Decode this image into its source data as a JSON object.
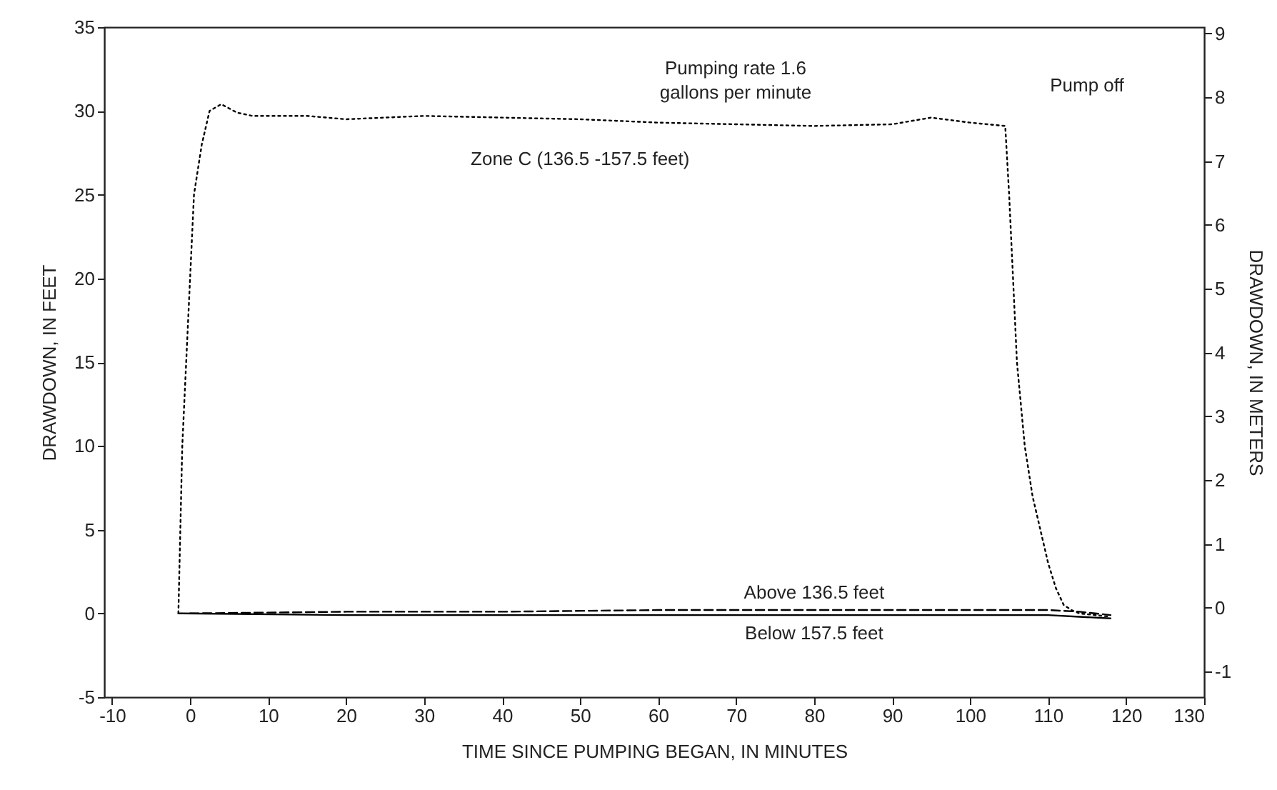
{
  "chart_data": {
    "type": "line",
    "xlabel": "TIME SINCE PUMPING BEGAN, IN MINUTES",
    "ylabel": "DRAWDOWN, IN FEET",
    "y2label": "DRAWDOWN, IN METERS",
    "xlim": [
      -11,
      130
    ],
    "xticks": [
      -10,
      0,
      10,
      20,
      30,
      40,
      50,
      60,
      70,
      80,
      90,
      100,
      110,
      120,
      130
    ],
    "ylim": [
      -5,
      35
    ],
    "yticks": [
      -5,
      0,
      5,
      10,
      15,
      20,
      25,
      30,
      35
    ],
    "y2lim": [
      -1.4,
      9.1
    ],
    "y2ticks": [
      -1,
      0,
      1,
      2,
      3,
      4,
      5,
      6,
      7,
      8,
      9
    ],
    "grid": false,
    "legend": false,
    "annotations": [
      "Pumping rate 1.6\ngallons per minute",
      "Pump off"
    ],
    "series": [
      {
        "name": "Zone C (136.5 -157.5 feet)",
        "color": "#000000",
        "line_style": "dotted",
        "x": [
          -1.5,
          -1,
          0,
          0.5,
          1.5,
          2.5,
          4,
          6,
          8,
          15,
          20,
          30,
          40,
          50,
          60,
          70,
          80,
          90,
          95,
          100,
          104.5,
          105,
          105.5,
          106,
          107,
          108,
          109,
          110,
          111,
          112,
          113,
          114,
          118
        ],
        "values": [
          0,
          10,
          20,
          25,
          28,
          30,
          30.4,
          29.9,
          29.7,
          29.7,
          29.5,
          29.7,
          29.6,
          29.5,
          29.3,
          29.2,
          29.1,
          29.2,
          29.6,
          29.3,
          29.1,
          25,
          20,
          15,
          10,
          7,
          5,
          3,
          1.5,
          0.5,
          0.2,
          0,
          -0.2
        ]
      },
      {
        "name": "Above 136.5 feet",
        "color": "#000000",
        "line_style": "dashed",
        "x": [
          0,
          20,
          40,
          60,
          80,
          100,
          110,
          114,
          118
        ],
        "values": [
          0,
          0.1,
          0.1,
          0.2,
          0.2,
          0.2,
          0.2,
          0.1,
          -0.1
        ]
      },
      {
        "name": "Below 157.5 feet",
        "color": "#000000",
        "line_style": "solid",
        "x": [
          -1.5,
          20,
          40,
          60,
          80,
          100,
          110,
          114,
          118
        ],
        "values": [
          0,
          -0.1,
          -0.1,
          -0.1,
          -0.1,
          -0.1,
          -0.1,
          -0.2,
          -0.3
        ]
      }
    ]
  }
}
